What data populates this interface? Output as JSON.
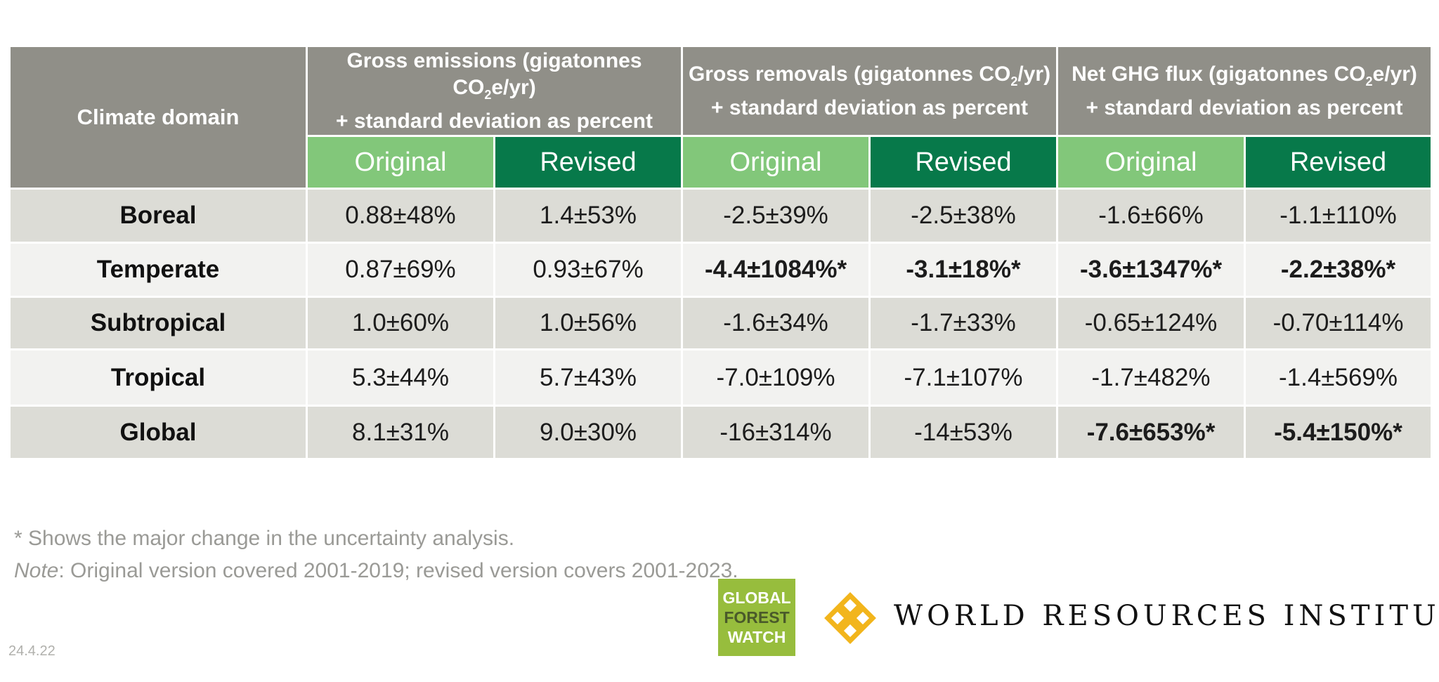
{
  "table": {
    "domain_header": "Climate domain",
    "groups": [
      {
        "pre": "Gross emissions (gigatonnes CO",
        "sub": "2",
        "post": "e/yr)",
        "line2": "+ standard deviation as percent"
      },
      {
        "pre": "Gross removals (gigatonnes CO",
        "sub": "2",
        "post": "/yr)",
        "line2": "+ standard deviation as percent"
      },
      {
        "pre": "Net GHG flux (gigatonnes CO",
        "sub": "2",
        "post": "e/yr)",
        "line2": "+ standard deviation as percent"
      }
    ],
    "sub_headers": [
      "Original",
      "Revised",
      "Original",
      "Revised",
      "Original",
      "Revised"
    ],
    "rows": [
      {
        "domain": "Boreal",
        "values": [
          "0.88±48%",
          "1.4±53%",
          "-2.5±39%",
          "-2.5±38%",
          "-1.6±66%",
          "-1.1±110%"
        ]
      },
      {
        "domain": "Temperate",
        "values": [
          "0.87±69%",
          "0.93±67%",
          "-4.4±1084%*",
          "-3.1±18%*",
          "-3.6±1347%*",
          "-2.2±38%*"
        ]
      },
      {
        "domain": "Subtropical",
        "values": [
          "1.0±60%",
          "1.0±56%",
          "-1.6±34%",
          "-1.7±33%",
          "-0.65±124%",
          "-0.70±114%"
        ]
      },
      {
        "domain": "Tropical",
        "values": [
          "5.3±44%",
          "5.7±43%",
          "-7.0±109%",
          "-7.1±107%",
          "-1.7±482%",
          "-1.4±569%"
        ]
      },
      {
        "domain": "Global",
        "values": [
          "8.1±31%",
          "9.0±30%",
          "-16±314%",
          "-14±53%",
          "-7.6±653%*",
          "-5.4±150%*"
        ]
      }
    ]
  },
  "footnotes": {
    "asterisk": "* Shows the major change in the uncertainty analysis.",
    "note_label": "Note",
    "note_text": ": Original version covered 2001-2019; revised version covers 2001-2023."
  },
  "version": "24.4.22",
  "logos": {
    "gfw": [
      "GLOBAL",
      "FOREST",
      "WATCH"
    ],
    "wri": "WORLD RESOURCES INSTITUTE",
    "gfw_color": "#97bd3d",
    "wri_mark_color": "#f2b51c"
  },
  "colors": {
    "header_gray": "#908f88",
    "original_green": "#82c77a",
    "revised_green": "#07794a",
    "row_dark": "#dcdcd6",
    "row_light": "#f2f2f0"
  }
}
